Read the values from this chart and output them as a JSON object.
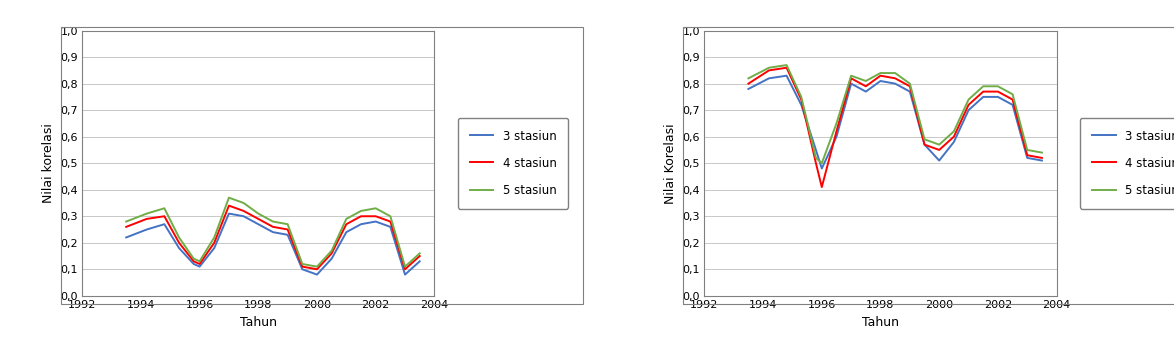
{
  "chart1": {
    "ylabel": "Nilai korelasi",
    "xlabel": "Tahun",
    "xlim": [
      1992,
      2004
    ],
    "ylim": [
      0.0,
      1.0
    ],
    "yticks": [
      0.0,
      0.1,
      0.2,
      0.3,
      0.4,
      0.5,
      0.6,
      0.7,
      0.8,
      0.9,
      1.0
    ],
    "xticks": [
      1992,
      1994,
      1996,
      1998,
      2000,
      2002,
      2004
    ],
    "series": {
      "3 stasiun": {
        "color": "#4472C4",
        "x": [
          1993.5,
          1994.2,
          1994.8,
          1995.3,
          1995.8,
          1996.0,
          1996.5,
          1997.0,
          1997.5,
          1998.0,
          1998.5,
          1999.0,
          1999.5,
          2000.0,
          2000.5,
          2001.0,
          2001.5,
          2002.0,
          2002.5,
          2003.0,
          2003.5
        ],
        "y": [
          0.22,
          0.25,
          0.27,
          0.18,
          0.12,
          0.11,
          0.18,
          0.31,
          0.3,
          0.27,
          0.24,
          0.23,
          0.1,
          0.08,
          0.14,
          0.24,
          0.27,
          0.28,
          0.26,
          0.08,
          0.13
        ]
      },
      "4 stasiun": {
        "color": "#FF0000",
        "x": [
          1993.5,
          1994.2,
          1994.8,
          1995.3,
          1995.8,
          1996.0,
          1996.5,
          1997.0,
          1997.5,
          1998.0,
          1998.5,
          1999.0,
          1999.5,
          2000.0,
          2000.5,
          2001.0,
          2001.5,
          2002.0,
          2002.5,
          2003.0,
          2003.5
        ],
        "y": [
          0.26,
          0.29,
          0.3,
          0.2,
          0.13,
          0.12,
          0.2,
          0.34,
          0.32,
          0.29,
          0.26,
          0.25,
          0.11,
          0.1,
          0.16,
          0.27,
          0.3,
          0.3,
          0.28,
          0.1,
          0.15
        ]
      },
      "5 stasiun": {
        "color": "#70AD47",
        "x": [
          1993.5,
          1994.2,
          1994.8,
          1995.3,
          1995.8,
          1996.0,
          1996.5,
          1997.0,
          1997.5,
          1998.0,
          1998.5,
          1999.0,
          1999.5,
          2000.0,
          2000.5,
          2001.0,
          2001.5,
          2002.0,
          2002.5,
          2003.0,
          2003.5
        ],
        "y": [
          0.28,
          0.31,
          0.33,
          0.22,
          0.14,
          0.13,
          0.22,
          0.37,
          0.35,
          0.31,
          0.28,
          0.27,
          0.12,
          0.11,
          0.17,
          0.29,
          0.32,
          0.33,
          0.3,
          0.11,
          0.16
        ]
      }
    }
  },
  "chart2": {
    "ylabel": "Nilai Korelasi",
    "xlabel": "Tahun",
    "xlim": [
      1992,
      2004
    ],
    "ylim": [
      0.0,
      1.0
    ],
    "yticks": [
      0.0,
      0.1,
      0.2,
      0.3,
      0.4,
      0.5,
      0.6,
      0.7,
      0.8,
      0.9,
      1.0
    ],
    "xticks": [
      1992,
      1994,
      1996,
      1998,
      2000,
      2002,
      2004
    ],
    "series": {
      "3 stasiun": {
        "color": "#4472C4",
        "x": [
          1993.5,
          1994.2,
          1994.8,
          1995.3,
          1995.8,
          1996.0,
          1996.5,
          1997.0,
          1997.5,
          1998.0,
          1998.5,
          1999.0,
          1999.5,
          2000.0,
          2000.5,
          2001.0,
          2001.5,
          2002.0,
          2002.5,
          2003.0,
          2003.5
        ],
        "y": [
          0.78,
          0.82,
          0.83,
          0.72,
          0.55,
          0.48,
          0.6,
          0.8,
          0.77,
          0.81,
          0.8,
          0.77,
          0.57,
          0.51,
          0.58,
          0.7,
          0.75,
          0.75,
          0.72,
          0.52,
          0.51
        ]
      },
      "4 stasiun": {
        "color": "#FF0000",
        "x": [
          1993.5,
          1994.2,
          1994.8,
          1995.3,
          1995.8,
          1996.0,
          1996.5,
          1997.0,
          1997.5,
          1998.0,
          1998.5,
          1999.0,
          1999.5,
          2000.0,
          2000.5,
          2001.0,
          2001.5,
          2002.0,
          2002.5,
          2003.0,
          2003.5
        ],
        "y": [
          0.8,
          0.85,
          0.86,
          0.74,
          0.5,
          0.41,
          0.62,
          0.82,
          0.79,
          0.83,
          0.82,
          0.79,
          0.57,
          0.55,
          0.6,
          0.72,
          0.77,
          0.77,
          0.74,
          0.53,
          0.52
        ]
      },
      "5 stasiun": {
        "color": "#70AD47",
        "x": [
          1993.5,
          1994.2,
          1994.8,
          1995.3,
          1995.8,
          1996.0,
          1996.5,
          1997.0,
          1997.5,
          1998.0,
          1998.5,
          1999.0,
          1999.5,
          2000.0,
          2000.5,
          2001.0,
          2001.5,
          2002.0,
          2002.5,
          2003.0,
          2003.5
        ],
        "y": [
          0.82,
          0.86,
          0.87,
          0.75,
          0.52,
          0.5,
          0.65,
          0.83,
          0.81,
          0.84,
          0.84,
          0.8,
          0.59,
          0.57,
          0.62,
          0.74,
          0.79,
          0.79,
          0.76,
          0.55,
          0.54
        ]
      }
    }
  },
  "line_width": 1.4,
  "bg_color": "#FFFFFF",
  "panel_bg": "#FFFFFF",
  "grid_color": "#BFBFBF",
  "spine_color": "#808080",
  "legend_fontsize": 8.5,
  "axis_fontsize": 8,
  "label_fontsize": 9
}
